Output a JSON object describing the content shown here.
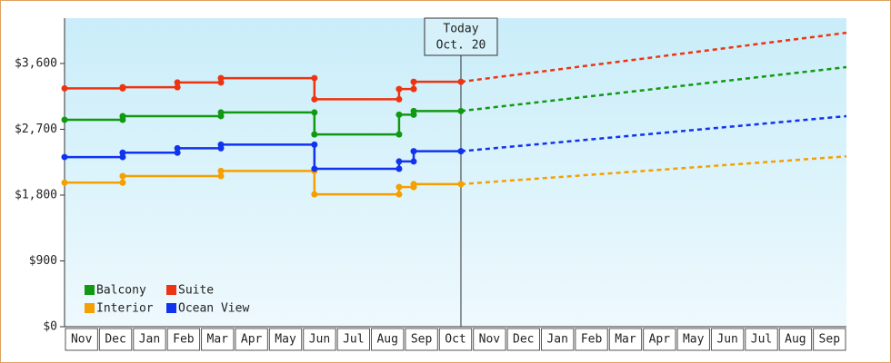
{
  "chart_data": {
    "type": "step-line",
    "categories": [
      "Nov",
      "Dec",
      "Jan",
      "Feb",
      "Mar",
      "Apr",
      "May",
      "Jun",
      "Jul",
      "Aug",
      "Sep",
      "Oct",
      "Nov",
      "Dec",
      "Jan",
      "Feb",
      "Mar",
      "Apr",
      "May",
      "Jun",
      "Jul",
      "Aug",
      "Sep"
    ],
    "xlim": [
      0,
      23
    ],
    "ylim": [
      0,
      4220
    ],
    "yticks": [
      {
        "value": 0,
        "label": "$0"
      },
      {
        "value": 900,
        "label": "$900"
      },
      {
        "value": 1800,
        "label": "$1,800"
      },
      {
        "value": 2700,
        "label": "$2,700"
      },
      {
        "value": 3600,
        "label": "$3,600"
      }
    ],
    "today": {
      "x": 11.66,
      "label": "Today",
      "date": "Oct. 20"
    },
    "forecast_x": [
      11.66,
      23
    ],
    "legend": "lower left",
    "series": [
      {
        "name": "Balcony",
        "color": "#119911",
        "x": [
          0,
          1.71,
          1.71,
          4.6,
          4.6,
          7.35,
          7.35,
          9.84,
          9.84,
          10.27,
          10.27,
          11.66
        ],
        "values": [
          2830,
          2830,
          2880,
          2880,
          2930,
          2930,
          2630,
          2630,
          2900,
          2900,
          2950,
          2950
        ],
        "forecast_values": [
          2950,
          3550
        ]
      },
      {
        "name": "Interior",
        "color": "#f5a000",
        "x": [
          0,
          1.71,
          1.71,
          4.6,
          4.6,
          7.35,
          7.35,
          9.84,
          9.84,
          10.27,
          10.27,
          11.66
        ],
        "values": [
          1970,
          1970,
          2060,
          2060,
          2130,
          2130,
          1810,
          1810,
          1910,
          1910,
          1950,
          1950
        ],
        "forecast_values": [
          1950,
          2330
        ]
      },
      {
        "name": "Suite",
        "color": "#ee3311",
        "x": [
          0,
          1.71,
          1.71,
          3.32,
          3.32,
          4.6,
          4.6,
          7.35,
          7.35,
          9.84,
          9.84,
          10.27,
          10.27,
          11.66
        ],
        "values": [
          3260,
          3260,
          3275,
          3275,
          3340,
          3340,
          3400,
          3400,
          3110,
          3110,
          3250,
          3250,
          3350,
          3350
        ],
        "forecast_values": [
          3350,
          4020
        ]
      },
      {
        "name": "Ocean View",
        "color": "#1133ee",
        "x": [
          0,
          1.71,
          1.71,
          3.32,
          3.32,
          4.6,
          4.6,
          7.35,
          7.35,
          9.84,
          9.84,
          10.27,
          10.27,
          11.66
        ],
        "values": [
          2320,
          2320,
          2380,
          2380,
          2440,
          2440,
          2490,
          2490,
          2160,
          2160,
          2260,
          2260,
          2400,
          2400
        ],
        "forecast_values": [
          2400,
          2880
        ]
      }
    ]
  }
}
